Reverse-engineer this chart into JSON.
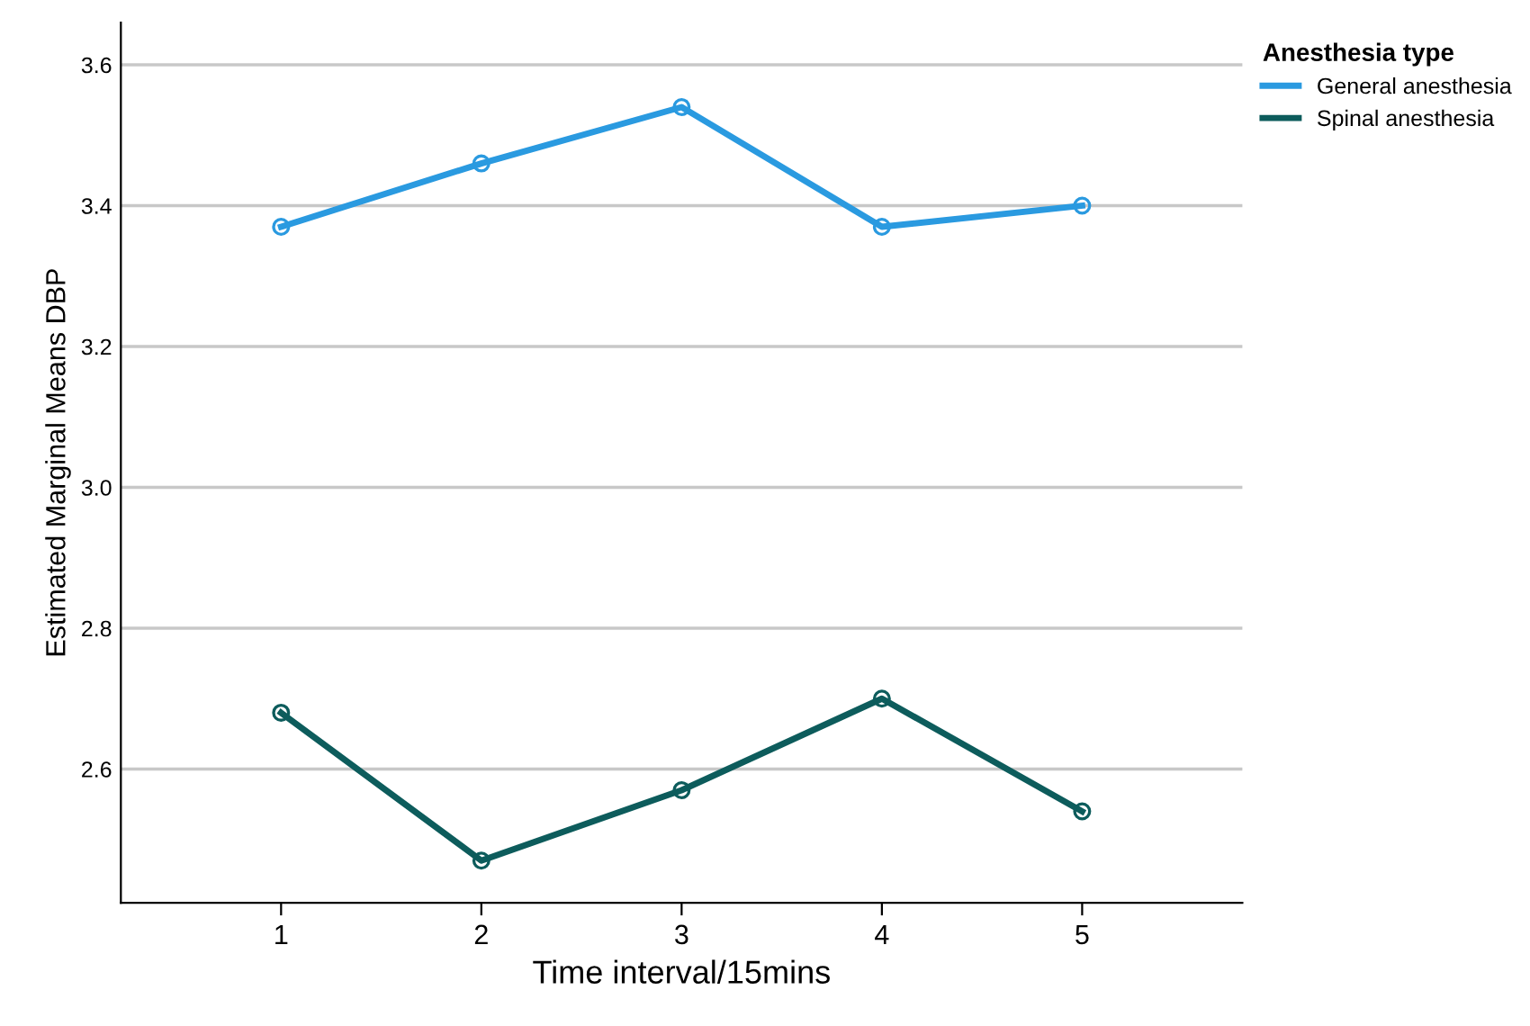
{
  "chart_data": {
    "type": "line",
    "xlabel": "Time interval/15mins",
    "ylabel": "Estimated Marginal Means DBP",
    "legend_title": "Anesthesia type",
    "x": [
      1,
      2,
      3,
      4,
      5
    ],
    "series": [
      {
        "name": "General anesthesia",
        "color": "#2a9ae0",
        "values": [
          3.37,
          3.46,
          3.54,
          3.37,
          3.4
        ]
      },
      {
        "name": "Spinal anesthesia",
        "color": "#0d5c5c",
        "values": [
          2.68,
          2.47,
          2.57,
          2.7,
          2.54
        ]
      }
    ],
    "xlim": [
      0.2,
      5.8
    ],
    "xticks": [
      1,
      2,
      3,
      4,
      5
    ],
    "ylim": [
      2.41,
      3.66
    ],
    "yticks": [
      {
        "value": 2.6,
        "label": "2.6"
      },
      {
        "value": 2.8,
        "label": "2.8"
      },
      {
        "value": 3.0,
        "label": "3.0"
      },
      {
        "value": 3.2,
        "label": "3.2"
      },
      {
        "value": 3.4,
        "label": "3.4"
      },
      {
        "value": 3.6,
        "label": "3.6"
      }
    ],
    "grid": "y",
    "legend": "top right",
    "marker": "circle",
    "line_style": "solid"
  }
}
